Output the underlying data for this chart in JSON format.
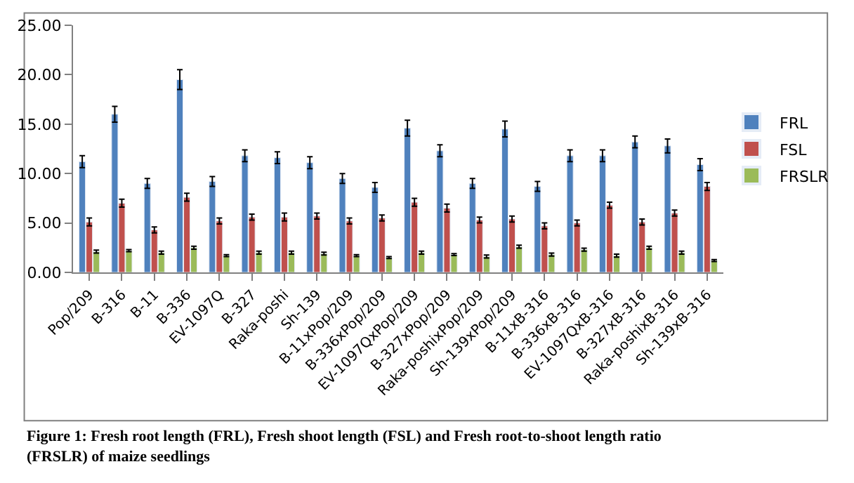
{
  "chart_data": {
    "type": "bar",
    "categories": [
      "Pop/209",
      "B-316",
      "B-11",
      "B-336",
      "EV-1097Q",
      "B-327",
      "Raka-poshi",
      "Sh-139",
      "B-11xPop/209",
      "B-336xPop/209",
      "EV-1097QxPop/209",
      "B-327xPop/209",
      "Raka-poshixPop/209",
      "Sh-139xPop/209",
      "B-11xB-316",
      "B-336xB-316",
      "EV-1097QxB-316",
      "B-327xB-316",
      "Raka-poshixB-316",
      "Sh-139xB-316"
    ],
    "series": [
      {
        "name": "FRL",
        "color": "#4f81bd",
        "values": [
          11.2,
          16.0,
          9.0,
          19.5,
          9.2,
          11.8,
          11.6,
          11.1,
          9.5,
          8.6,
          14.6,
          12.3,
          9.0,
          14.5,
          8.7,
          11.8,
          11.8,
          13.2,
          12.8,
          10.9
        ],
        "errors": [
          0.6,
          0.8,
          0.5,
          1.0,
          0.5,
          0.6,
          0.6,
          0.6,
          0.5,
          0.5,
          0.8,
          0.6,
          0.5,
          0.8,
          0.5,
          0.6,
          0.6,
          0.6,
          0.7,
          0.6
        ]
      },
      {
        "name": "FSL",
        "color": "#c0504d",
        "values": [
          5.1,
          7.0,
          4.3,
          7.6,
          5.2,
          5.6,
          5.6,
          5.7,
          5.2,
          5.5,
          7.1,
          6.5,
          5.3,
          5.4,
          4.7,
          5.0,
          6.8,
          5.1,
          6.0,
          8.7
        ],
        "errors": [
          0.4,
          0.4,
          0.3,
          0.4,
          0.3,
          0.3,
          0.4,
          0.3,
          0.3,
          0.3,
          0.4,
          0.4,
          0.3,
          0.3,
          0.3,
          0.3,
          0.3,
          0.3,
          0.3,
          0.4
        ]
      },
      {
        "name": "FRSLR",
        "color": "#9bbb59",
        "values": [
          2.1,
          2.2,
          2.0,
          2.5,
          1.7,
          2.0,
          2.0,
          1.9,
          1.7,
          1.5,
          2.0,
          1.8,
          1.6,
          2.6,
          1.8,
          2.3,
          1.7,
          2.5,
          2.0,
          1.2
        ],
        "errors": [
          0.15,
          0.1,
          0.15,
          0.15,
          0.1,
          0.15,
          0.15,
          0.15,
          0.1,
          0.1,
          0.15,
          0.1,
          0.15,
          0.15,
          0.15,
          0.15,
          0.15,
          0.15,
          0.15,
          0.1
        ]
      }
    ],
    "ylim": [
      0,
      25
    ],
    "yticks": [
      {
        "value": 0,
        "label": "0.00"
      },
      {
        "value": 5,
        "label": "5.00"
      },
      {
        "value": 10,
        "label": "10.00"
      },
      {
        "value": 15,
        "label": "15.00"
      },
      {
        "value": 20,
        "label": "20.00"
      },
      {
        "value": 25,
        "label": "25.00"
      }
    ],
    "legend": "right",
    "annotations": [
      "Figure 1: Fresh root length (FRL), Fresh shoot length (FSL) and Fresh root-to-shoot length ratio (FRSLR) of maize seedlings"
    ]
  }
}
